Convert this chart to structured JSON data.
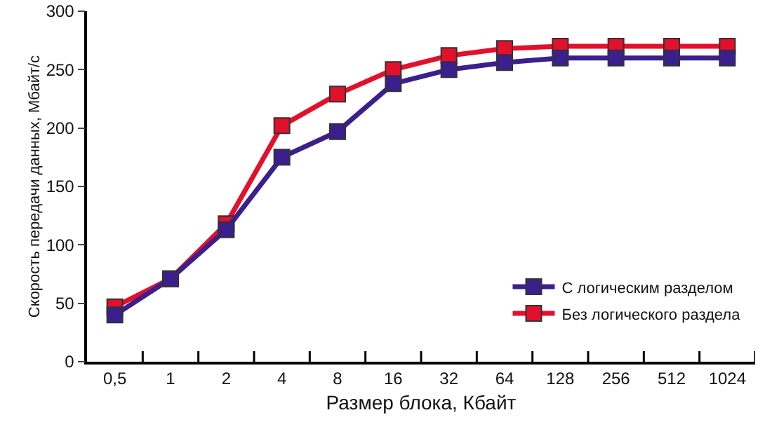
{
  "chart_data": {
    "type": "line",
    "xlabel": "Размер блока, Кбайт",
    "ylabel": "Скорость передачи данных, Мбайт/с",
    "categories": [
      "0,5",
      "1",
      "2",
      "4",
      "8",
      "16",
      "32",
      "64",
      "128",
      "256",
      "512",
      "1024"
    ],
    "series": [
      {
        "name": "С логическим разделом",
        "color": "#3b1f8c",
        "values": [
          40,
          71,
          113,
          175,
          197,
          238,
          250,
          256,
          260,
          260,
          260,
          260
        ]
      },
      {
        "name": "Без логического раздела",
        "color": "#e3102c",
        "values": [
          47,
          71,
          118,
          202,
          229,
          250,
          262,
          268,
          270,
          270,
          270,
          270
        ]
      }
    ],
    "ylim": [
      0,
      300
    ],
    "yticks": [
      0,
      50,
      100,
      150,
      200,
      250,
      300
    ],
    "grid": false,
    "legend": "bottom right",
    "marker": "square",
    "line_style": "solid"
  }
}
